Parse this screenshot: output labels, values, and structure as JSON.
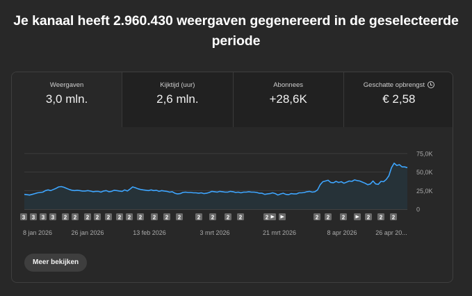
{
  "headline": "Je kanaal heeft 2.960.430 weergaven gegenereerd in de geselecteerde periode",
  "tabs": [
    {
      "label": "Weergaven",
      "value": "3,0 mln."
    },
    {
      "label": "Kijktijd (uur)",
      "value": "2,6 mln."
    },
    {
      "label": "Abonnees",
      "value": "+28,6K"
    },
    {
      "label": "Geschatte opbrengst",
      "value": "€ 2,58",
      "icon": "clock-icon"
    }
  ],
  "more_button": "Meer bekijken",
  "colors": {
    "line": "#3ea6ff",
    "area": "#263238",
    "background": "#282828"
  },
  "chart_data": {
    "type": "area",
    "ylabel": "",
    "ylim": [
      0,
      75000
    ],
    "yticks": [
      "75,0K",
      "50,0K",
      "25,0K",
      "0"
    ],
    "xticks": [
      "8 jan 2026",
      "26 jan 2026",
      "13 feb 2026",
      "3 mrt 2026",
      "21 mrt 2026",
      "8 apr 2026",
      "26 apr 20..."
    ],
    "series": [
      {
        "values": [
          20000,
          19500,
          19000,
          20000,
          21000,
          22000,
          22500,
          23000,
          25000,
          26000,
          25000,
          26500,
          28000,
          30000,
          30500,
          29500,
          28000,
          26500,
          25500,
          25000,
          25500,
          25000,
          24500,
          24500,
          25000,
          24500,
          23500,
          24000,
          24000,
          23000,
          24500,
          25000,
          23500,
          24000,
          25500,
          25000,
          24500,
          24000,
          26000,
          24500,
          27000,
          30000,
          29000,
          27500,
          26500,
          26000,
          25500,
          25000,
          26000,
          25000,
          25500,
          24000,
          25000,
          24500,
          24000,
          23000,
          23500,
          21500,
          20500,
          21000,
          22500,
          23000,
          22500,
          22500,
          22000,
          22000,
          21500,
          22000,
          21000,
          21500,
          22500,
          24000,
          23500,
          23000,
          24000,
          23500,
          23000,
          23000,
          24000,
          23500,
          22500,
          23000,
          22000,
          23000,
          23000,
          23500,
          23000,
          23000,
          22500,
          21500,
          21500,
          20000,
          20500,
          21000,
          22000,
          21000,
          19000,
          20500,
          21500,
          20000,
          19500,
          21000,
          20500,
          20500,
          22000,
          22000,
          22500,
          23500,
          24000,
          23000,
          23500,
          26000,
          33000,
          37000,
          38000,
          39000,
          36000,
          35500,
          37500,
          36000,
          37000,
          35000,
          36500,
          38000,
          37500,
          39500,
          38500,
          38000,
          36500,
          35000,
          33000,
          34000,
          38000,
          34000,
          33500,
          37500,
          37000,
          40000,
          45000,
          56000,
          62000,
          59000,
          60000,
          57000,
          57000,
          56000
        ]
      }
    ],
    "markers": [
      {
        "label": "3"
      },
      {
        "label": "3"
      },
      {
        "label": "3"
      },
      {
        "label": "3"
      },
      {
        "label": "2"
      },
      {
        "label": "2"
      },
      {
        "label": "2"
      },
      {
        "label": "2"
      },
      {
        "label": "2"
      },
      {
        "label": "2"
      },
      {
        "label": "2"
      },
      {
        "label": "2"
      },
      {
        "label": "2"
      },
      {
        "label": "2"
      },
      {
        "label": "2"
      },
      {
        "label": "2"
      },
      {
        "label": "2"
      },
      {
        "label": "2"
      },
      {
        "label": "2"
      },
      {
        "label": "2"
      },
      {
        "label": "play"
      },
      {
        "label": "play"
      },
      {
        "label": "2"
      },
      {
        "label": "2"
      },
      {
        "label": "2"
      },
      {
        "label": "play"
      },
      {
        "label": "2"
      },
      {
        "label": "2"
      },
      {
        "label": "2"
      }
    ]
  }
}
